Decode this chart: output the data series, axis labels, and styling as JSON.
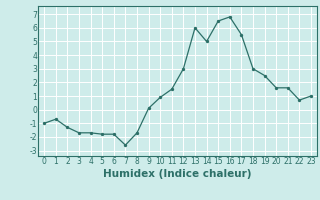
{
  "x": [
    0,
    1,
    2,
    3,
    4,
    5,
    6,
    7,
    8,
    9,
    10,
    11,
    12,
    13,
    14,
    15,
    16,
    17,
    18,
    19,
    20,
    21,
    22,
    23
  ],
  "y": [
    -1.0,
    -0.7,
    -1.3,
    -1.7,
    -1.7,
    -1.8,
    -1.8,
    -2.6,
    -1.7,
    0.1,
    0.9,
    1.5,
    3.0,
    6.0,
    5.0,
    6.5,
    6.8,
    5.5,
    3.0,
    2.5,
    1.6,
    1.6,
    0.7,
    1.0
  ],
  "xlabel": "Humidex (Indice chaleur)",
  "xlim": [
    -0.5,
    23.5
  ],
  "ylim": [
    -3.4,
    7.6
  ],
  "yticks": [
    -3,
    -2,
    -1,
    0,
    1,
    2,
    3,
    4,
    5,
    6,
    7
  ],
  "xticks": [
    0,
    1,
    2,
    3,
    4,
    5,
    6,
    7,
    8,
    9,
    10,
    11,
    12,
    13,
    14,
    15,
    16,
    17,
    18,
    19,
    20,
    21,
    22,
    23
  ],
  "line_color": "#2d7068",
  "bg_color": "#ceecea",
  "grid_color": "#ffffff",
  "spine_color": "#2d7068",
  "tick_fontsize": 5.5,
  "xlabel_fontsize": 7.5
}
